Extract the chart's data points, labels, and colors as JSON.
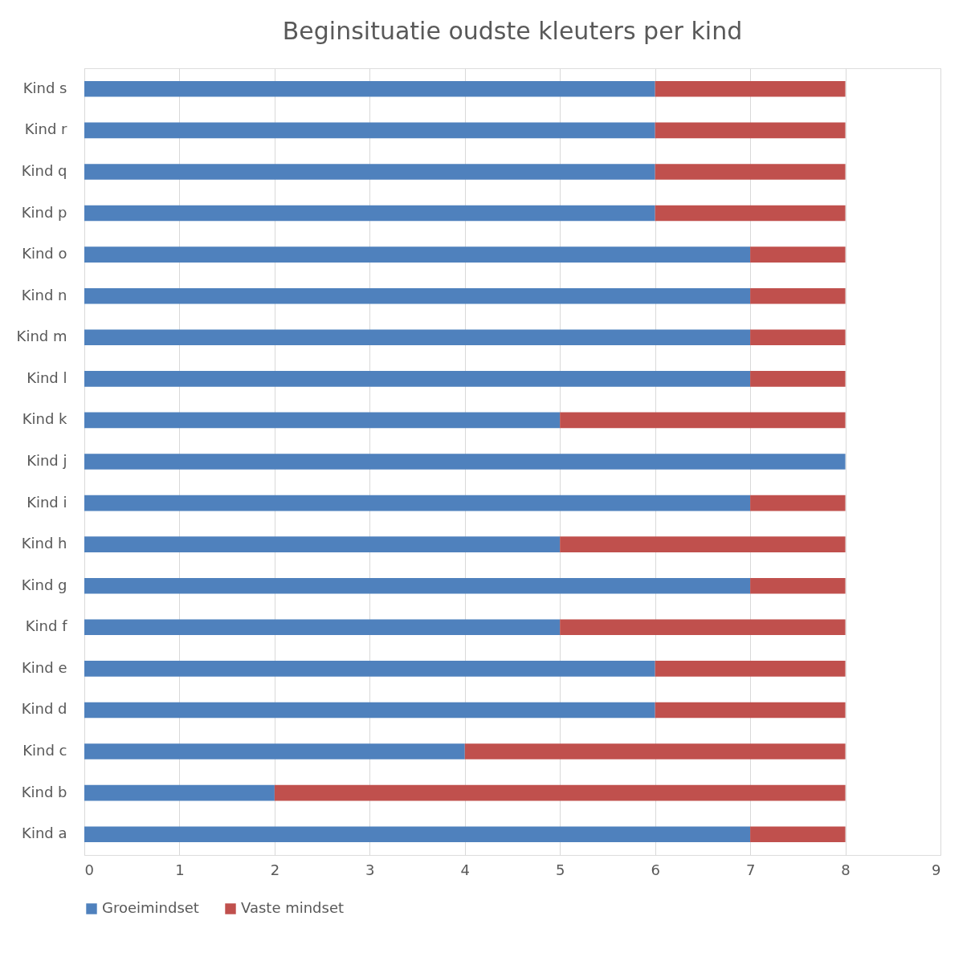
{
  "chart_data": {
    "type": "bar",
    "orientation": "horizontal",
    "stacked": true,
    "title": "Beginsituatie oudste kleuters per kind",
    "categories": [
      "Kind s",
      "Kind r",
      "Kind q",
      "Kind p",
      "Kind o",
      "Kind n",
      "Kind m",
      "Kind l",
      "Kind k",
      "Kind j",
      "Kind i",
      "Kind h",
      "Kind g",
      "Kind f",
      "Kind e",
      "Kind d",
      "Kind c",
      "Kind b",
      "Kind a"
    ],
    "series": [
      {
        "name": "Groeimindset",
        "color": "#4f81bd",
        "values": [
          6,
          6,
          6,
          6,
          7,
          7,
          7,
          7,
          5,
          8,
          7,
          5,
          7,
          5,
          6,
          6,
          4,
          2,
          7
        ]
      },
      {
        "name": "Vaste mindset",
        "color": "#c0504d",
        "values": [
          2,
          2,
          2,
          2,
          1,
          1,
          1,
          1,
          3,
          0,
          1,
          3,
          1,
          3,
          2,
          2,
          4,
          6,
          1
        ]
      }
    ],
    "xlim": [
      0,
      9
    ],
    "xticks": [
      0,
      1,
      2,
      3,
      4,
      5,
      6,
      7,
      8,
      9
    ],
    "grid": "x",
    "legend": "bottom"
  }
}
